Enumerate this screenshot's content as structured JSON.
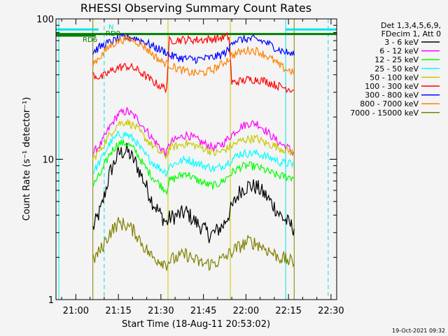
{
  "chart_data": {
    "type": "line",
    "title": "RHESSI Observing Summary Count Rates",
    "xlabel": "Start Time (18-Aug-11 20:53:02)",
    "ylabel": "Count Rate (s⁻¹ detector⁻¹)",
    "yscale": "log",
    "ylim": [
      1,
      100
    ],
    "xlim": [
      "20:53",
      "22:32"
    ],
    "x_ticks": [
      "21:00",
      "21:15",
      "21:30",
      "21:45",
      "22:00",
      "22:15",
      "22:30"
    ],
    "y_ticks": [
      "1",
      "10",
      "100"
    ],
    "timestamp": "19-Oct-2021 09:32",
    "legend": {
      "placement": "right",
      "header": [
        "Det 1,3,4,5,6,9,",
        "FDecim 1, Att 0"
      ]
    },
    "flags": [
      {
        "label": "N",
        "color": "#00e5e5"
      },
      {
        "label": "RD0",
        "color": "#008000"
      },
      {
        "label": "RD6",
        "color": "#008000"
      }
    ],
    "series": [
      {
        "name": "3 - 6 keV",
        "color": "#000000",
        "points": [
          [
            "21:06",
            3.2
          ],
          [
            "21:09",
            4.5
          ],
          [
            "21:12",
            8
          ],
          [
            "21:15",
            11
          ],
          [
            "21:18",
            11.5
          ],
          [
            "21:21",
            9.5
          ],
          [
            "21:24",
            7
          ],
          [
            "21:27",
            5
          ],
          [
            "21:30",
            4
          ],
          [
            "21:32",
            3.5
          ],
          [
            "21:33",
            3.8
          ],
          [
            "21:36",
            4
          ],
          [
            "21:39",
            4.2
          ],
          [
            "21:42",
            3.6
          ],
          [
            "21:45",
            3.2
          ],
          [
            "21:47",
            2.9
          ],
          [
            "21:49",
            3
          ],
          [
            "21:52",
            3.4
          ],
          [
            "21:55",
            4.5
          ],
          [
            "21:58",
            6
          ],
          [
            "22:01",
            6.5
          ],
          [
            "22:04",
            6.3
          ],
          [
            "22:07",
            5.5
          ],
          [
            "22:10",
            4.6
          ],
          [
            "22:12",
            4
          ],
          [
            "22:15",
            3.5
          ],
          [
            "22:17",
            3.2
          ]
        ]
      },
      {
        "name": "6 - 12 keV",
        "color": "#ff00ff",
        "points": [
          [
            "21:06",
            11
          ],
          [
            "21:09",
            13
          ],
          [
            "21:12",
            17
          ],
          [
            "21:15",
            21
          ],
          [
            "21:18",
            22
          ],
          [
            "21:21",
            20
          ],
          [
            "21:24",
            17
          ],
          [
            "21:27",
            14
          ],
          [
            "21:30",
            12
          ],
          [
            "21:32",
            11
          ],
          [
            "21:33",
            13
          ],
          [
            "21:36",
            14
          ],
          [
            "21:39",
            15
          ],
          [
            "21:42",
            14
          ],
          [
            "21:45",
            13
          ],
          [
            "21:47",
            12.5
          ],
          [
            "21:49",
            12
          ],
          [
            "21:52",
            13
          ],
          [
            "21:55",
            15
          ],
          [
            "21:58",
            17
          ],
          [
            "22:01",
            18
          ],
          [
            "22:04",
            18
          ],
          [
            "22:07",
            16
          ],
          [
            "22:10",
            14
          ],
          [
            "22:12",
            13
          ],
          [
            "22:15",
            12
          ],
          [
            "22:17",
            11
          ]
        ]
      },
      {
        "name": "12 - 25 keV",
        "color": "#00ff00",
        "points": [
          [
            "21:06",
            6.5
          ],
          [
            "21:09",
            8
          ],
          [
            "21:12",
            11
          ],
          [
            "21:15",
            13
          ],
          [
            "21:18",
            13
          ],
          [
            "21:21",
            11.5
          ],
          [
            "21:24",
            9
          ],
          [
            "21:27",
            7.5
          ],
          [
            "21:30",
            6.5
          ],
          [
            "21:32",
            6
          ],
          [
            "21:33",
            7
          ],
          [
            "21:36",
            7.5
          ],
          [
            "21:39",
            8
          ],
          [
            "21:42",
            7.2
          ],
          [
            "21:45",
            6.8
          ],
          [
            "21:47",
            6.5
          ],
          [
            "21:49",
            6.5
          ],
          [
            "21:52",
            7
          ],
          [
            "21:55",
            8
          ],
          [
            "21:58",
            8.8
          ],
          [
            "22:01",
            9
          ],
          [
            "22:04",
            8.8
          ],
          [
            "22:07",
            8.3
          ],
          [
            "22:10",
            7.8
          ],
          [
            "22:12",
            7.6
          ],
          [
            "22:15",
            7.5
          ],
          [
            "22:17",
            7.4
          ]
        ]
      },
      {
        "name": "25 - 50 keV",
        "color": "#00ffff",
        "points": [
          [
            "21:06",
            8
          ],
          [
            "21:09",
            10
          ],
          [
            "21:12",
            13
          ],
          [
            "21:15",
            15
          ],
          [
            "21:18",
            15
          ],
          [
            "21:21",
            13.5
          ],
          [
            "21:24",
            11
          ],
          [
            "21:27",
            9.5
          ],
          [
            "21:30",
            8.5
          ],
          [
            "21:32",
            8
          ],
          [
            "21:33",
            9
          ],
          [
            "21:36",
            9.5
          ],
          [
            "21:39",
            10
          ],
          [
            "21:42",
            9.5
          ],
          [
            "21:45",
            9
          ],
          [
            "21:47",
            8.8
          ],
          [
            "21:49",
            8.5
          ],
          [
            "21:52",
            9
          ],
          [
            "21:55",
            10
          ],
          [
            "21:58",
            11
          ],
          [
            "22:01",
            11
          ],
          [
            "22:04",
            11
          ],
          [
            "22:07",
            10.5
          ],
          [
            "22:10",
            10
          ],
          [
            "22:12",
            9.5
          ],
          [
            "22:15",
            9.3
          ],
          [
            "22:17",
            9.2
          ]
        ]
      },
      {
        "name": "50 - 100 keV",
        "color": "#c8c800",
        "points": [
          [
            "21:06",
            10
          ],
          [
            "21:09",
            12
          ],
          [
            "21:12",
            15
          ],
          [
            "21:15",
            18
          ],
          [
            "21:18",
            18.5
          ],
          [
            "21:21",
            17
          ],
          [
            "21:24",
            14.5
          ],
          [
            "21:27",
            12.5
          ],
          [
            "21:30",
            11
          ],
          [
            "21:32",
            10.5
          ],
          [
            "21:33",
            12
          ],
          [
            "21:36",
            12.5
          ],
          [
            "21:39",
            13
          ],
          [
            "21:42",
            12.5
          ],
          [
            "21:45",
            12
          ],
          [
            "21:47",
            11.5
          ],
          [
            "21:49",
            11
          ],
          [
            "21:52",
            11.5
          ],
          [
            "21:55",
            12.5
          ],
          [
            "21:58",
            13.5
          ],
          [
            "22:01",
            14
          ],
          [
            "22:04",
            14
          ],
          [
            "22:07",
            13
          ],
          [
            "22:10",
            12.5
          ],
          [
            "22:12",
            12
          ],
          [
            "22:15",
            11.5
          ],
          [
            "22:17",
            11
          ]
        ]
      },
      {
        "name": "100 - 300 keV",
        "color": "#ff0000",
        "points": [
          [
            "21:06",
            40
          ],
          [
            "21:09",
            38
          ],
          [
            "21:12",
            42
          ],
          [
            "21:15",
            45
          ],
          [
            "21:18",
            46
          ],
          [
            "21:21",
            44
          ],
          [
            "21:24",
            40
          ],
          [
            "21:27",
            36
          ],
          [
            "21:30",
            33
          ],
          [
            "21:32",
            32
          ],
          [
            "21:33",
            70
          ],
          [
            "21:36",
            71
          ],
          [
            "21:39",
            71
          ],
          [
            "21:42",
            71
          ],
          [
            "21:45",
            71
          ],
          [
            "21:48",
            72
          ],
          [
            "21:51",
            73
          ],
          [
            "21:54",
            75
          ],
          [
            "21:55",
            35
          ],
          [
            "21:58",
            36
          ],
          [
            "22:01",
            37
          ],
          [
            "22:04",
            37
          ],
          [
            "22:07",
            36
          ],
          [
            "22:10",
            34
          ],
          [
            "22:12",
            33
          ],
          [
            "22:15",
            32
          ],
          [
            "22:17",
            31
          ]
        ]
      },
      {
        "name": "300 - 800 keV",
        "color": "#0000ff",
        "points": [
          [
            "21:06",
            58
          ],
          [
            "21:09",
            64
          ],
          [
            "21:12",
            68
          ],
          [
            "21:15",
            72
          ],
          [
            "21:18",
            74
          ],
          [
            "21:21",
            73
          ],
          [
            "21:24",
            69
          ],
          [
            "21:27",
            64
          ],
          [
            "21:30",
            60
          ],
          [
            "21:32",
            58
          ],
          [
            "21:33",
            55
          ],
          [
            "21:36",
            53
          ],
          [
            "21:39",
            52
          ],
          [
            "21:42",
            51.5
          ],
          [
            "21:45",
            52
          ],
          [
            "21:48",
            53
          ],
          [
            "21:51",
            55
          ],
          [
            "21:54",
            60
          ],
          [
            "21:55",
            70
          ],
          [
            "21:58",
            71
          ],
          [
            "22:01",
            72
          ],
          [
            "22:04",
            71
          ],
          [
            "22:07",
            68
          ],
          [
            "22:10",
            63
          ],
          [
            "22:12",
            60
          ],
          [
            "22:15",
            57
          ],
          [
            "22:17",
            55
          ]
        ]
      },
      {
        "name": "800 - 7000 keV",
        "color": "#ff8000",
        "points": [
          [
            "21:06",
            48
          ],
          [
            "21:09",
            55
          ],
          [
            "21:12",
            64
          ],
          [
            "21:15",
            70
          ],
          [
            "21:18",
            72
          ],
          [
            "21:21",
            70
          ],
          [
            "21:24",
            64
          ],
          [
            "21:27",
            56
          ],
          [
            "21:30",
            50
          ],
          [
            "21:32",
            48
          ],
          [
            "21:33",
            47
          ],
          [
            "21:36",
            44
          ],
          [
            "21:39",
            42
          ],
          [
            "21:42",
            41
          ],
          [
            "21:45",
            41.5
          ],
          [
            "21:48",
            43
          ],
          [
            "21:51",
            47
          ],
          [
            "21:54",
            52
          ],
          [
            "21:55",
            55
          ],
          [
            "21:58",
            58
          ],
          [
            "22:01",
            60
          ],
          [
            "22:04",
            59
          ],
          [
            "22:07",
            55
          ],
          [
            "22:10",
            50
          ],
          [
            "22:12",
            46
          ],
          [
            "22:15",
            43
          ],
          [
            "22:17",
            42
          ]
        ]
      },
      {
        "name": "7000 - 15000 keV",
        "color": "#808000",
        "points": [
          [
            "21:06",
            1.9
          ],
          [
            "21:09",
            2.3
          ],
          [
            "21:12",
            3.0
          ],
          [
            "21:15",
            3.5
          ],
          [
            "21:18",
            3.4
          ],
          [
            "21:21",
            3.0
          ],
          [
            "21:24",
            2.4
          ],
          [
            "21:27",
            2.0
          ],
          [
            "21:30",
            1.9
          ],
          [
            "21:32",
            1.8
          ],
          [
            "21:33",
            1.9
          ],
          [
            "21:36",
            2.0
          ],
          [
            "21:39",
            2.1
          ],
          [
            "21:42",
            1.9
          ],
          [
            "21:45",
            1.8
          ],
          [
            "21:48",
            1.8
          ],
          [
            "21:51",
            1.9
          ],
          [
            "21:54",
            2.1
          ],
          [
            "21:55",
            2.2
          ],
          [
            "21:58",
            2.4
          ],
          [
            "22:01",
            2.6
          ],
          [
            "22:04",
            2.5
          ],
          [
            "22:07",
            2.3
          ],
          [
            "22:10",
            2.1
          ],
          [
            "22:12",
            2.0
          ],
          [
            "22:15",
            1.9
          ],
          [
            "22:17",
            1.8
          ]
        ]
      }
    ],
    "markers": [
      {
        "time": "20:54",
        "color": "#00e5e5",
        "style": "solid"
      },
      {
        "time": "21:10",
        "color": "#00e5e5",
        "style": "dashed"
      },
      {
        "time": "22:14",
        "color": "#00e5e5",
        "style": "solid"
      },
      {
        "time": "22:29",
        "color": "#00e5e5",
        "style": "dashed"
      },
      {
        "time": "21:32.5",
        "color": "#c8c800",
        "style": "solid"
      },
      {
        "time": "21:54.5",
        "color": "#c8c800",
        "style": "solid"
      },
      {
        "time": "21:06",
        "color": "#808000",
        "style": "solid"
      },
      {
        "time": "22:17",
        "color": "#808000",
        "style": "solid"
      }
    ],
    "flag_bars": [
      {
        "label": "N",
        "color": "#00e5e5",
        "level": 84,
        "segments": [
          [
            "20:53",
            "21:08"
          ],
          [
            "22:14",
            "22:32"
          ]
        ]
      },
      {
        "label": "RD0",
        "color": "#008000",
        "level": 78,
        "segments": [
          [
            "20:53",
            "21:10"
          ],
          [
            "21:10",
            "22:14"
          ],
          [
            "22:14",
            "22:32"
          ]
        ]
      },
      {
        "label": "RD6",
        "color": "#008000",
        "level": 76,
        "segments": [
          [
            "20:53",
            "21:07"
          ]
        ]
      }
    ]
  }
}
